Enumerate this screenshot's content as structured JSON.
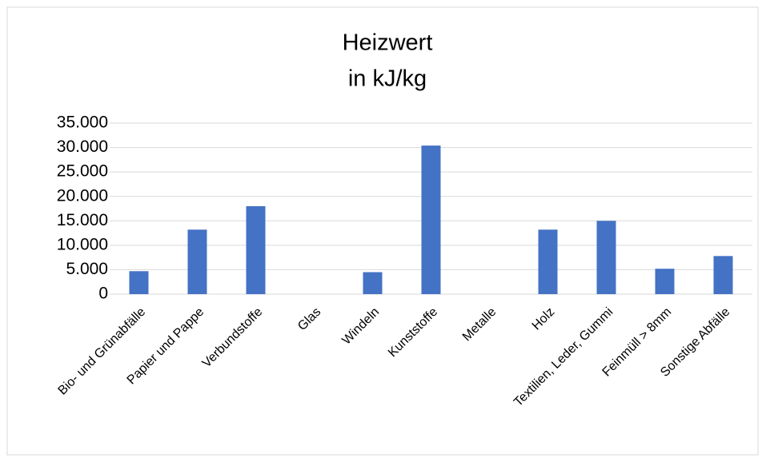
{
  "chart_data": {
    "type": "bar",
    "title": "Heizwert",
    "subtitle": "in kJ/kg",
    "categories": [
      "Bio- und Grünabfälle",
      "Papier und Pappe",
      "Verbundstoffe",
      "Glas",
      "Windeln",
      "Kunststoffe",
      "Metalle",
      "Holz",
      "Textilien, Leder, Gummi",
      "Feinmüll > 8mm",
      "Sonstige Abfälle"
    ],
    "values": [
      4700,
      13200,
      18000,
      0,
      4500,
      30400,
      0,
      13200,
      15000,
      5200,
      7800
    ],
    "color": "#4472c4",
    "ylim": [
      0,
      35000
    ],
    "yticks": [
      0,
      {
        "value": 5000,
        "label": "5.000"
      },
      {
        "value": 10000,
        "label": "10.000"
      },
      {
        "value": 15000,
        "label": "15.000"
      },
      {
        "value": 20000,
        "label": "20.000"
      },
      {
        "value": 25000,
        "label": "25.000"
      },
      {
        "value": 30000,
        "label": "30.000"
      },
      {
        "value": 35000,
        "label": "35.000"
      }
    ],
    "grid": true
  }
}
